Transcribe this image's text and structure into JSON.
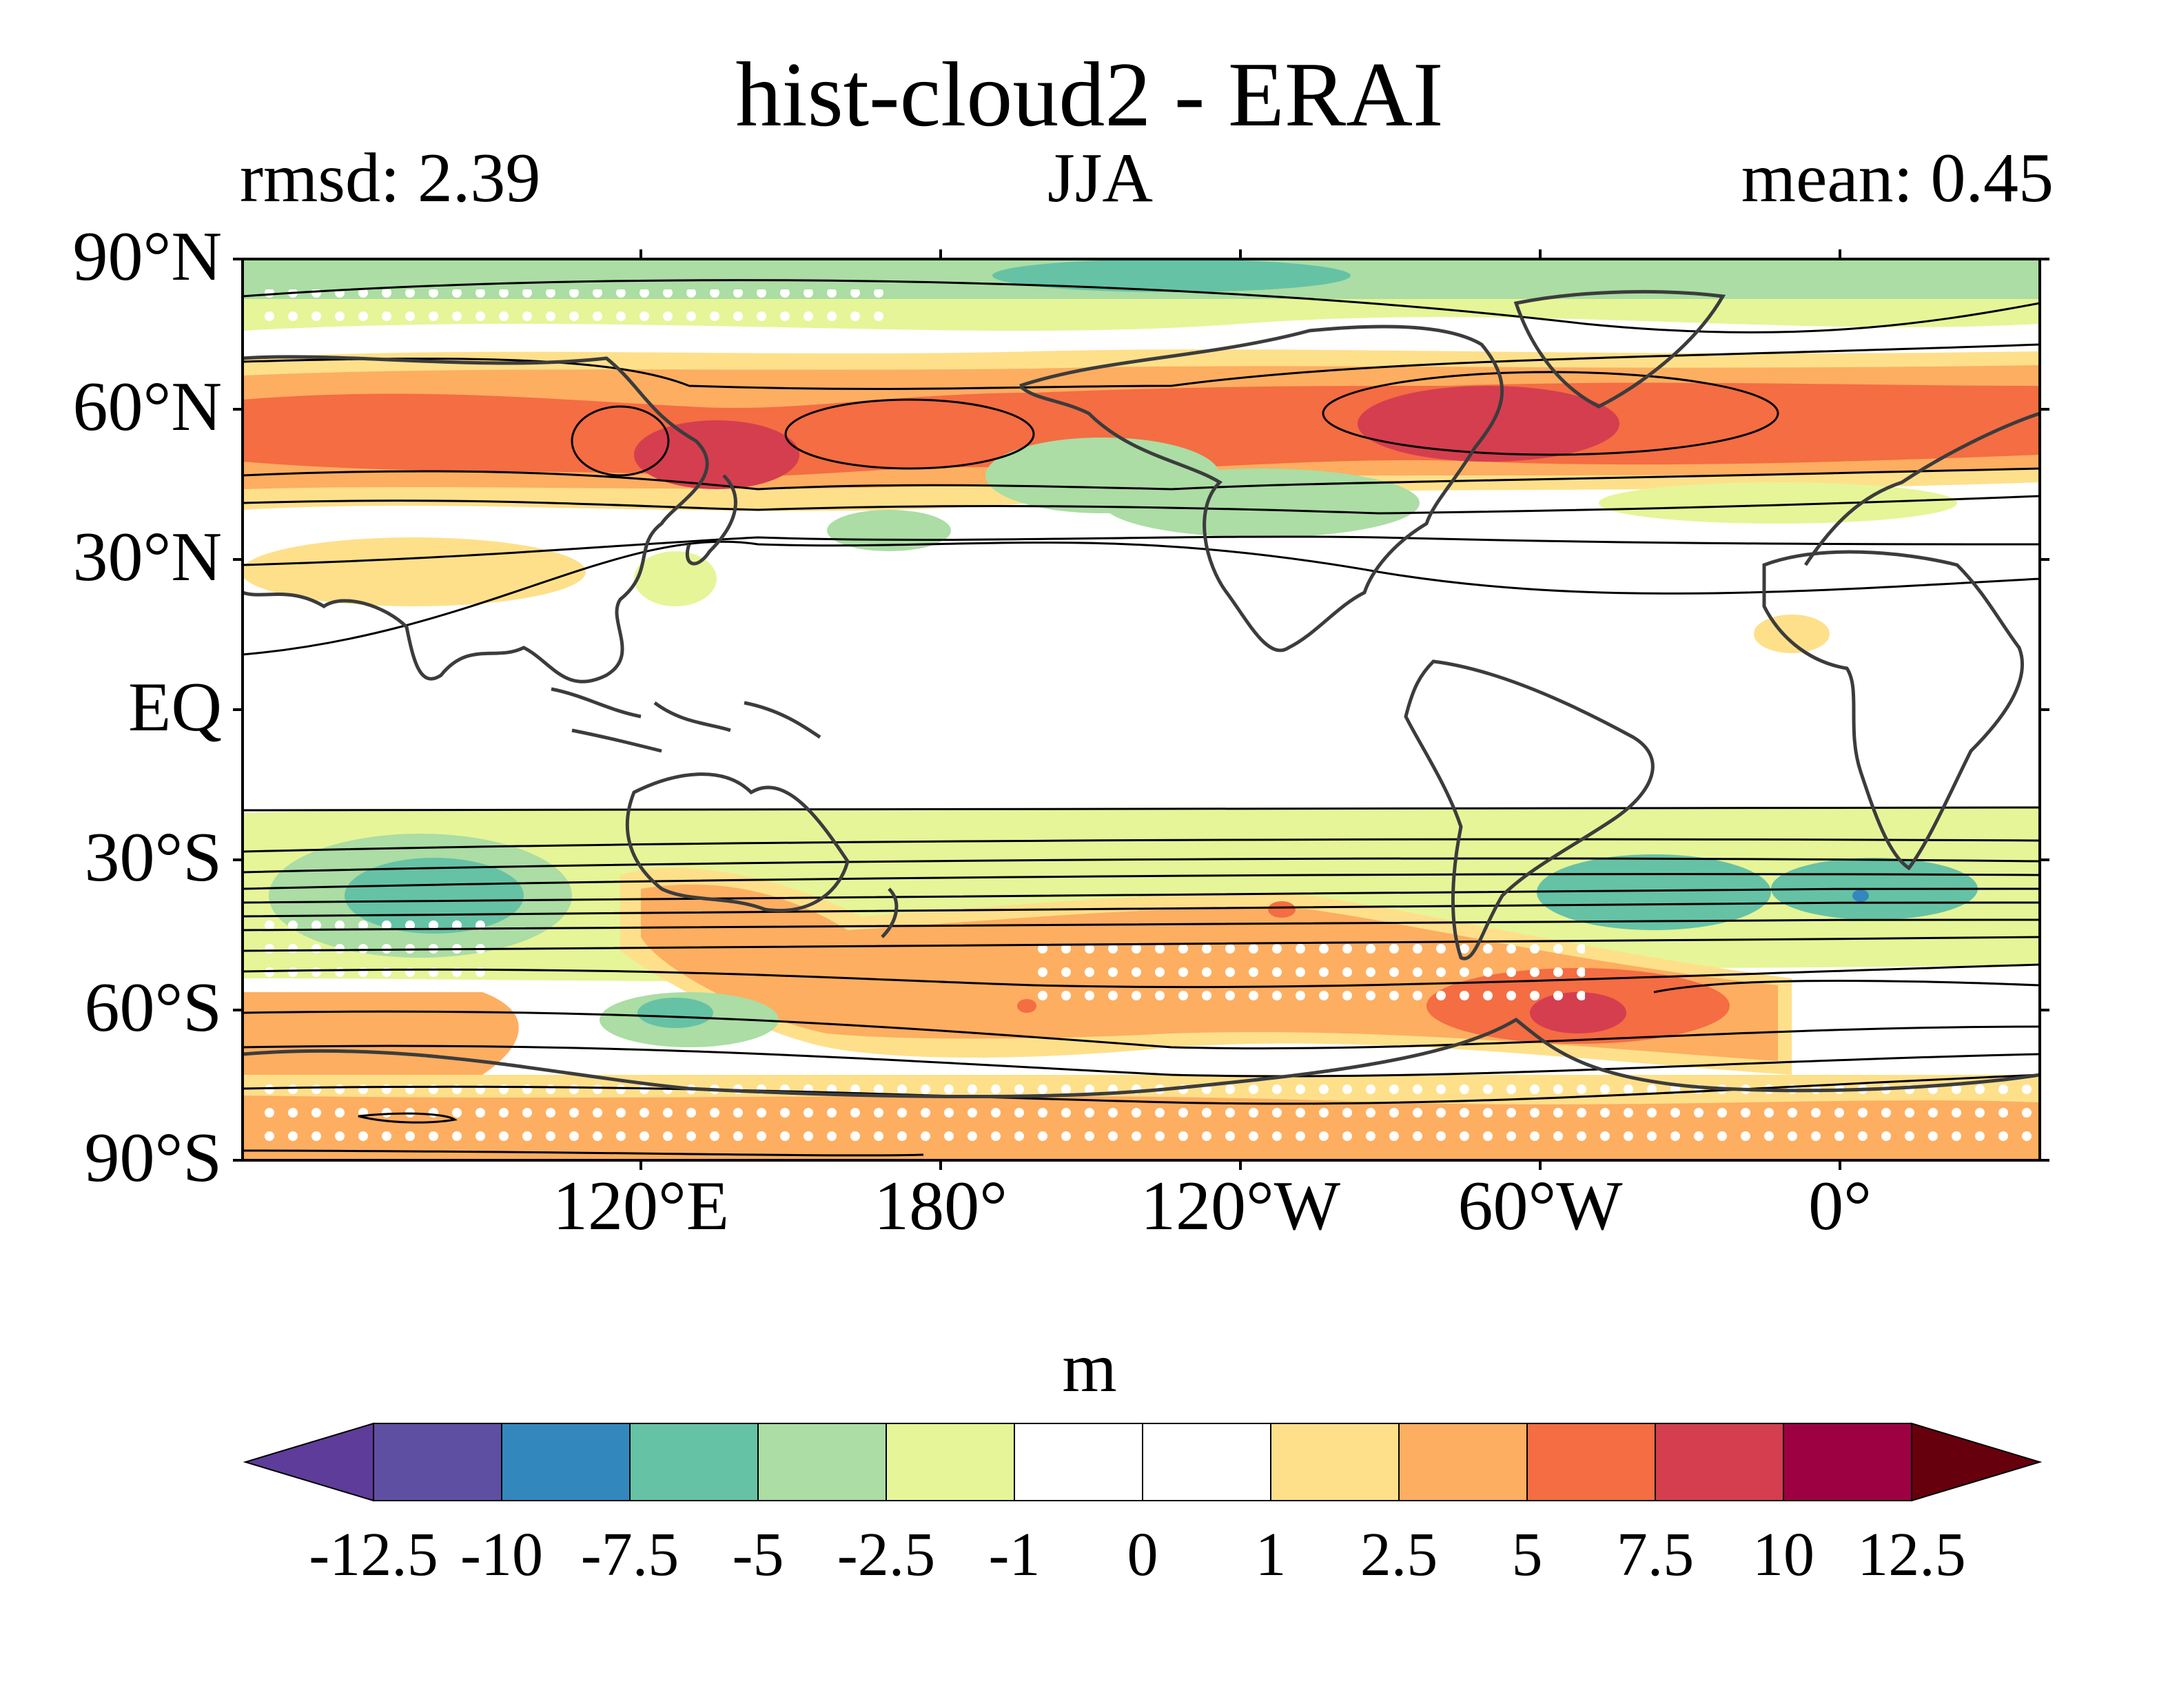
{
  "figure": {
    "title": "hist-cloud2 - ERAI",
    "left_annotation": "rmsd: 2.39",
    "center_annotation": "JJA",
    "right_annotation": "mean: 0.45"
  },
  "map": {
    "projection": "PlateCarree, centered 120°W",
    "lat_ticks": [
      "90°N",
      "60°N",
      "30°N",
      "EQ",
      "30°S",
      "60°S",
      "90°S"
    ],
    "lon_ticks": [
      "120°E",
      "180°",
      "120°W",
      "60°W",
      "0°"
    ],
    "variable": "geopotential height difference (model minus reanalysis)",
    "overlays": [
      "coastlines",
      "climatology contours",
      "significance stippling"
    ]
  },
  "colorbar": {
    "unit": "m",
    "levels": [
      "-12.5",
      "-10",
      "-7.5",
      "-5",
      "-2.5",
      "-1",
      "0",
      "1",
      "2.5",
      "5",
      "7.5",
      "10",
      "12.5"
    ],
    "colors": [
      "#5e3c99",
      "#5e4fa2",
      "#3288bd",
      "#66c2a5",
      "#abdda4",
      "#e6f598",
      "#ffffff",
      "#ffffff",
      "#fee08b",
      "#fdae61",
      "#f46d43",
      "#d53e4f",
      "#9e0142",
      "#67000d"
    ],
    "extend": "both"
  }
}
